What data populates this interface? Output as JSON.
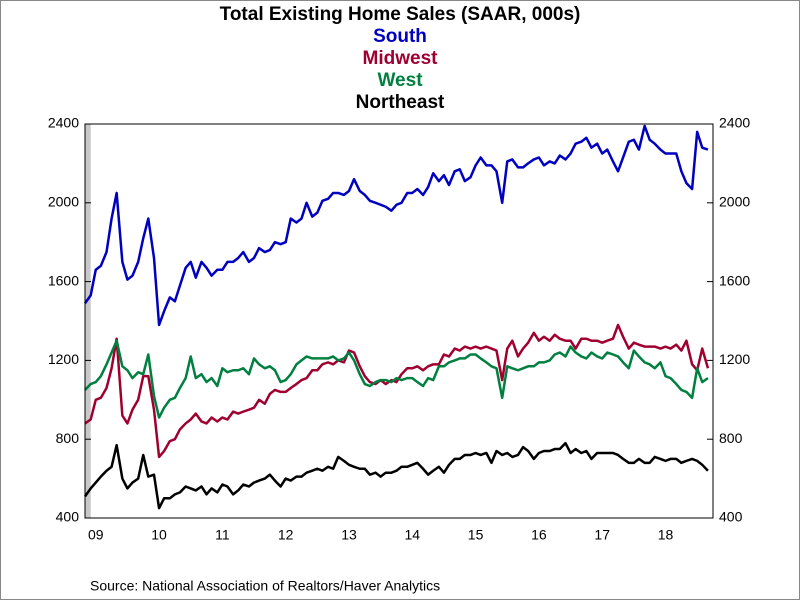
{
  "chart_data": {
    "type": "line",
    "title": "Total Existing Home Sales (SAAR, 000s)",
    "source": "Source:  National Association of Realtors/Haver Analytics",
    "x": [
      2009.33,
      2009.42,
      2009.5,
      2009.58,
      2009.67,
      2009.75,
      2009.83,
      2009.92,
      2010,
      2010.08,
      2010.17,
      2010.25,
      2010.33,
      2010.42,
      2010.5,
      2010.58,
      2010.67,
      2010.75,
      2010.83,
      2010.92,
      2011,
      2011.08,
      2011.17,
      2011.25,
      2011.33,
      2011.42,
      2011.5,
      2011.58,
      2011.67,
      2011.75,
      2011.83,
      2011.92,
      2012,
      2012.08,
      2012.17,
      2012.25,
      2012.33,
      2012.42,
      2012.5,
      2012.58,
      2012.67,
      2012.75,
      2012.83,
      2012.92,
      2013,
      2013.08,
      2013.17,
      2013.25,
      2013.33,
      2013.42,
      2013.5,
      2013.58,
      2013.67,
      2013.75,
      2013.83,
      2013.92,
      2014,
      2014.08,
      2014.17,
      2014.25,
      2014.33,
      2014.42,
      2014.5,
      2014.58,
      2014.67,
      2014.75,
      2014.83,
      2014.92,
      2015,
      2015.08,
      2015.17,
      2015.25,
      2015.33,
      2015.42,
      2015.5,
      2015.58,
      2015.67,
      2015.75,
      2015.83,
      2015.92,
      2016,
      2016.08,
      2016.17,
      2016.25,
      2016.33,
      2016.42,
      2016.5,
      2016.58,
      2016.67,
      2016.75,
      2016.83,
      2016.92,
      2017,
      2017.08,
      2017.17,
      2017.25,
      2017.33,
      2017.42,
      2017.5,
      2017.58,
      2017.67,
      2017.75,
      2017.83,
      2017.92,
      2018,
      2018.08,
      2018.17,
      2018.25,
      2018.33,
      2018.42,
      2018.5,
      2018.58,
      2018.67,
      2018.75,
      2018.83,
      2018.92,
      2019,
      2019.08,
      2019.17
    ],
    "series": [
      {
        "name": "South",
        "color": "#0000c0",
        "values": [
          1490,
          1530,
          1660,
          1680,
          1750,
          1920,
          2050,
          1700,
          1610,
          1630,
          1700,
          1820,
          1920,
          1720,
          1380,
          1450,
          1520,
          1500,
          1580,
          1670,
          1700,
          1620,
          1700,
          1670,
          1630,
          1660,
          1660,
          1700,
          1700,
          1720,
          1750,
          1700,
          1720,
          1770,
          1750,
          1760,
          1800,
          1790,
          1800,
          1920,
          1900,
          1920,
          2000,
          1930,
          1950,
          2010,
          2020,
          2050,
          2050,
          2040,
          2060,
          2120,
          2060,
          2040,
          2010,
          2000,
          1990,
          1980,
          1960,
          1990,
          2000,
          2050,
          2050,
          2070,
          2040,
          2080,
          2150,
          2110,
          2140,
          2090,
          2160,
          2170,
          2110,
          2130,
          2190,
          2230,
          2190,
          2190,
          2160,
          2000,
          2210,
          2220,
          2180,
          2180,
          2200,
          2220,
          2230,
          2190,
          2210,
          2200,
          2240,
          2220,
          2250,
          2300,
          2310,
          2330,
          2280,
          2300,
          2250,
          2270,
          2210,
          2160,
          2230,
          2310,
          2320,
          2270,
          2390,
          2320,
          2300,
          2270,
          2250,
          2250,
          2250,
          2160,
          2100,
          2070,
          2360,
          2280,
          2270
        ]
      },
      {
        "name": "Midwest",
        "color": "#a00030",
        "values": [
          880,
          900,
          1000,
          1010,
          1060,
          1160,
          1310,
          920,
          880,
          950,
          1000,
          1120,
          1120,
          950,
          710,
          740,
          790,
          800,
          850,
          880,
          900,
          930,
          890,
          880,
          910,
          890,
          910,
          900,
          940,
          930,
          940,
          950,
          960,
          1000,
          980,
          1030,
          1050,
          1040,
          1040,
          1060,
          1080,
          1100,
          1110,
          1150,
          1150,
          1180,
          1190,
          1180,
          1200,
          1190,
          1250,
          1240,
          1170,
          1120,
          1090,
          1080,
          1100,
          1080,
          1100,
          1090,
          1130,
          1160,
          1160,
          1170,
          1150,
          1170,
          1180,
          1180,
          1230,
          1220,
          1260,
          1250,
          1270,
          1260,
          1270,
          1260,
          1270,
          1260,
          1250,
          1100,
          1260,
          1300,
          1220,
          1260,
          1290,
          1340,
          1300,
          1320,
          1300,
          1330,
          1310,
          1300,
          1300,
          1260,
          1310,
          1310,
          1300,
          1300,
          1290,
          1300,
          1310,
          1380,
          1320,
          1260,
          1290,
          1280,
          1270,
          1270,
          1270,
          1260,
          1270,
          1260,
          1280,
          1250,
          1300,
          1180,
          1150,
          1260,
          1160
        ]
      },
      {
        "name": "West",
        "color": "#008040",
        "values": [
          1050,
          1080,
          1090,
          1120,
          1180,
          1240,
          1300,
          1170,
          1150,
          1110,
          1140,
          1130,
          1230,
          1020,
          910,
          960,
          1000,
          1010,
          1060,
          1110,
          1220,
          1110,
          1130,
          1090,
          1110,
          1070,
          1160,
          1140,
          1150,
          1150,
          1160,
          1130,
          1210,
          1180,
          1160,
          1170,
          1150,
          1090,
          1100,
          1130,
          1180,
          1200,
          1220,
          1210,
          1210,
          1210,
          1210,
          1220,
          1200,
          1210,
          1240,
          1200,
          1130,
          1080,
          1070,
          1090,
          1100,
          1100,
          1090,
          1110,
          1100,
          1110,
          1110,
          1090,
          1070,
          1110,
          1100,
          1170,
          1170,
          1190,
          1200,
          1210,
          1210,
          1230,
          1230,
          1210,
          1190,
          1170,
          1160,
          1010,
          1170,
          1160,
          1150,
          1160,
          1170,
          1170,
          1190,
          1190,
          1200,
          1230,
          1240,
          1220,
          1270,
          1240,
          1220,
          1210,
          1240,
          1220,
          1210,
          1240,
          1230,
          1220,
          1190,
          1160,
          1250,
          1220,
          1190,
          1180,
          1160,
          1190,
          1120,
          1110,
          1080,
          1050,
          1040,
          1010,
          1160,
          1090,
          1110
        ]
      },
      {
        "name": "Northeast",
        "color": "#000000",
        "values": [
          510,
          550,
          580,
          610,
          640,
          660,
          770,
          600,
          550,
          580,
          600,
          720,
          610,
          620,
          450,
          500,
          500,
          520,
          530,
          560,
          550,
          540,
          560,
          520,
          550,
          530,
          570,
          560,
          520,
          540,
          570,
          560,
          580,
          590,
          600,
          620,
          590,
          560,
          600,
          590,
          610,
          610,
          630,
          640,
          650,
          640,
          660,
          650,
          710,
          690,
          670,
          660,
          650,
          650,
          620,
          630,
          610,
          630,
          630,
          640,
          660,
          660,
          670,
          680,
          650,
          620,
          640,
          660,
          630,
          670,
          700,
          700,
          720,
          720,
          730,
          720,
          730,
          680,
          740,
          720,
          730,
          710,
          720,
          760,
          740,
          700,
          730,
          740,
          740,
          750,
          750,
          780,
          730,
          750,
          730,
          740,
          700,
          730,
          730,
          730,
          730,
          720,
          700,
          680,
          680,
          700,
          680,
          680,
          710,
          700,
          690,
          700,
          700,
          680,
          690,
          700,
          690,
          670,
          640
        ]
      }
    ],
    "xlim": [
      2009.33,
      2019.25
    ],
    "xticks": [
      {
        "value": 2009.5,
        "label": "09"
      },
      {
        "value": 2010.5,
        "label": "10"
      },
      {
        "value": 2011.5,
        "label": "11"
      },
      {
        "value": 2012.5,
        "label": "12"
      },
      {
        "value": 2013.5,
        "label": "13"
      },
      {
        "value": 2014.5,
        "label": "14"
      },
      {
        "value": 2015.5,
        "label": "15"
      },
      {
        "value": 2016.5,
        "label": "16"
      },
      {
        "value": 2017.5,
        "label": "17"
      },
      {
        "value": 2018.5,
        "label": "18"
      }
    ],
    "ylim": [
      400,
      2400
    ],
    "yticks": [
      400,
      800,
      1200,
      1600,
      2000,
      2400
    ],
    "y2lim": [
      400,
      2400
    ],
    "y2ticks": [
      400,
      800,
      1200,
      1600,
      2000,
      2400
    ],
    "shaded_x": [
      2009.33,
      2009.42
    ]
  }
}
